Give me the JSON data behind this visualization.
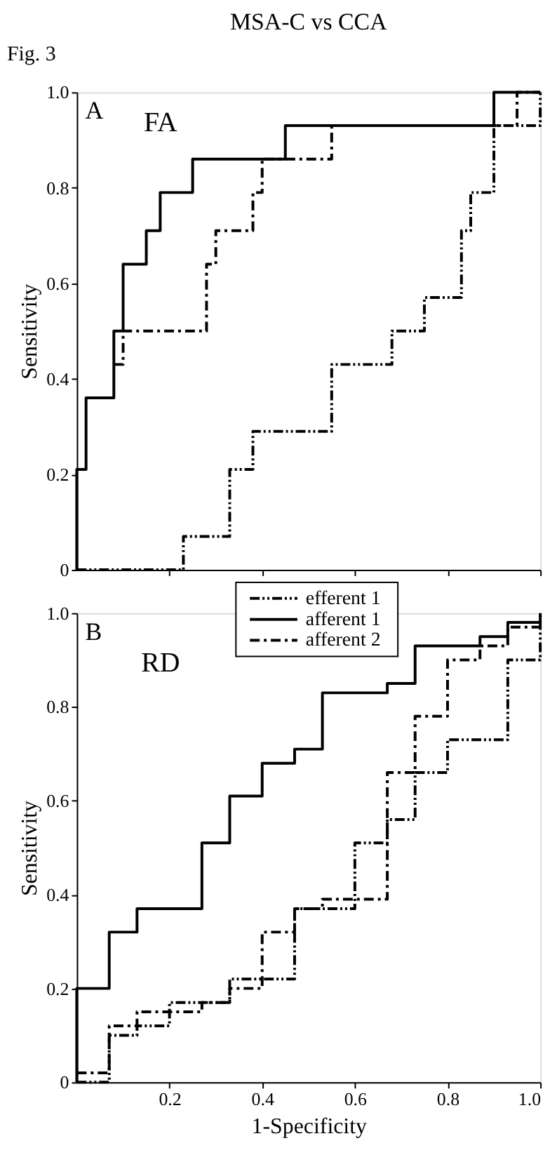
{
  "chart_data": [
    {
      "type": "step",
      "title": "MSA-C vs CCA",
      "ylabel": "Sensitivity",
      "annotations": [
        "Fig. 3",
        "A",
        "FA"
      ],
      "xlim": [
        0,
        1
      ],
      "ylim": [
        0,
        1
      ],
      "xticks": [
        0.2,
        0.4,
        0.6,
        0.8,
        1
      ],
      "yticks": [
        0,
        0.2,
        0.4,
        0.6,
        0.8,
        {
          "value": 1,
          "label": "1.0"
        }
      ],
      "tick_labels": "y",
      "grid": false,
      "series": [
        {
          "color": "#000000",
          "line_style": "dotted",
          "x": [
            0,
            0.23,
            0.33,
            0.38,
            0.55,
            0.68,
            0.75,
            0.83,
            0.85,
            0.9,
            1.0
          ],
          "values": [
            0,
            0.07,
            0.21,
            0.29,
            0.43,
            0.5,
            0.57,
            0.71,
            0.79,
            0.93,
            1.0
          ]
        },
        {
          "color": "#000000",
          "line_style": "solid",
          "x": [
            0,
            0,
            0.02,
            0.08,
            0.1,
            0.15,
            0.18,
            0.25,
            0.45,
            0.9,
            1.0
          ],
          "values": [
            0,
            0.21,
            0.36,
            0.5,
            0.64,
            0.71,
            0.79,
            0.86,
            0.93,
            1.0,
            1.0
          ]
        },
        {
          "color": "#000000",
          "line_style": "dashed",
          "x": [
            0.08,
            0.1,
            0.28,
            0.3,
            0.38,
            0.4,
            0.55,
            0.95,
            1.0
          ],
          "values": [
            0.43,
            0.5,
            0.64,
            0.71,
            0.79,
            0.86,
            0.93,
            1.0,
            1.0
          ]
        }
      ]
    },
    {
      "type": "step",
      "xlabel": "1-Specificity",
      "ylabel": "Sensitivity",
      "annotations": [
        "B",
        "RD"
      ],
      "xlim": [
        0,
        1
      ],
      "ylim": [
        0,
        1
      ],
      "xticks": [
        0.2,
        0.4,
        0.6,
        0.8,
        {
          "value": 1,
          "label": "1.0"
        }
      ],
      "yticks": [
        0,
        0.2,
        0.4,
        0.6,
        0.8,
        {
          "value": 1,
          "label": "1.0"
        }
      ],
      "legend": "top",
      "grid": false,
      "series": [
        {
          "name": "efferent 1",
          "color": "#000000",
          "line_style": "dotted",
          "x": [
            0,
            0.07,
            0.13,
            0.2,
            0.33,
            0.47,
            0.6,
            0.67,
            0.73,
            0.8,
            0.93,
            1.0
          ],
          "values": [
            0,
            0.1,
            0.12,
            0.17,
            0.22,
            0.37,
            0.51,
            0.56,
            0.66,
            0.73,
            0.9,
            1.0
          ]
        },
        {
          "name": "afferent 1",
          "color": "#000000",
          "line_style": "solid",
          "x": [
            0,
            0,
            0.07,
            0.13,
            0.27,
            0.33,
            0.4,
            0.47,
            0.53,
            0.67,
            0.73,
            0.87,
            0.93,
            1.0
          ],
          "values": [
            0,
            0.2,
            0.32,
            0.37,
            0.51,
            0.61,
            0.68,
            0.71,
            0.83,
            0.85,
            0.93,
            0.95,
            0.98,
            1.0
          ]
        },
        {
          "name": "afferent 2",
          "color": "#000000",
          "line_style": "dashed",
          "x": [
            0,
            0.07,
            0.13,
            0.27,
            0.33,
            0.4,
            0.47,
            0.53,
            0.67,
            0.73,
            0.8,
            0.87,
            0.93,
            1.0
          ],
          "values": [
            0.02,
            0.12,
            0.15,
            0.17,
            0.2,
            0.32,
            0.37,
            0.39,
            0.66,
            0.78,
            0.9,
            0.93,
            0.97,
            0.98
          ]
        }
      ]
    }
  ]
}
